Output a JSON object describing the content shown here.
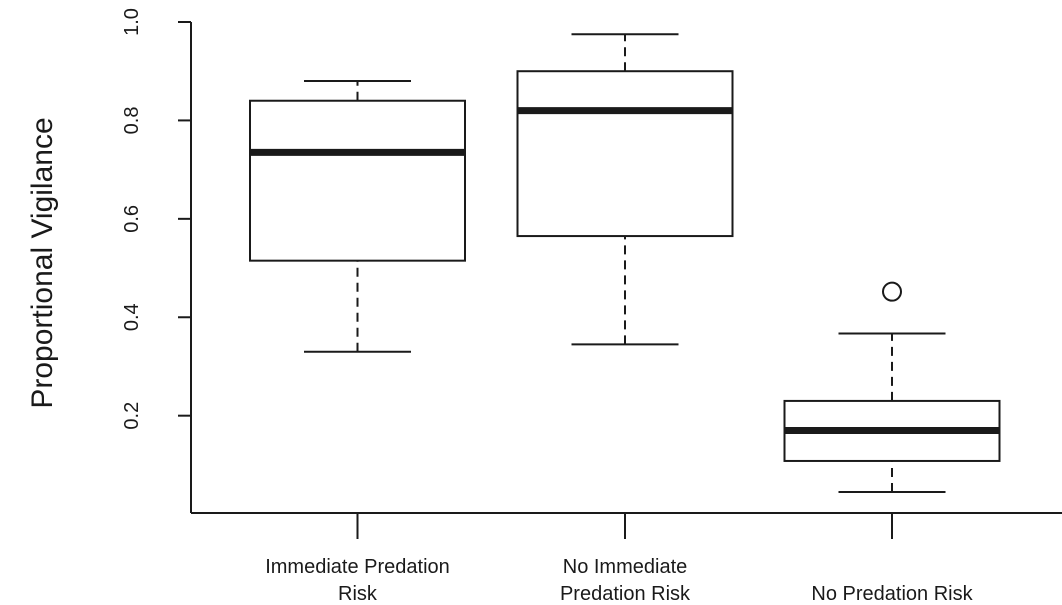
{
  "chart_data": {
    "type": "boxplot",
    "title": "",
    "xlabel": "",
    "ylabel": "Proportional Vigilance",
    "ylim": [
      0.0,
      1.0
    ],
    "yticks": [
      0.2,
      0.4,
      0.6,
      0.8,
      1.0
    ],
    "ytick_labels": [
      "0.2",
      "0.4",
      "0.6",
      "0.8",
      "1.0"
    ],
    "grid": false,
    "categories": [
      [
        "Immediate Predation",
        "Risk"
      ],
      [
        "No Immediate",
        "Predation Risk"
      ],
      [
        "No Predation Risk"
      ]
    ],
    "boxes": [
      {
        "whisker_low": 0.33,
        "q1": 0.515,
        "median": 0.735,
        "q3": 0.84,
        "whisker_high": 0.88,
        "outliers": []
      },
      {
        "whisker_low": 0.345,
        "q1": 0.565,
        "median": 0.82,
        "q3": 0.9,
        "whisker_high": 0.975,
        "outliers": []
      },
      {
        "whisker_low": 0.045,
        "q1": 0.108,
        "median": 0.17,
        "q3": 0.23,
        "whisker_high": 0.367,
        "outliers": [
          0.452
        ]
      }
    ],
    "colors": {
      "line": "#1a1a1a",
      "box_fill": "#ffffff"
    }
  }
}
